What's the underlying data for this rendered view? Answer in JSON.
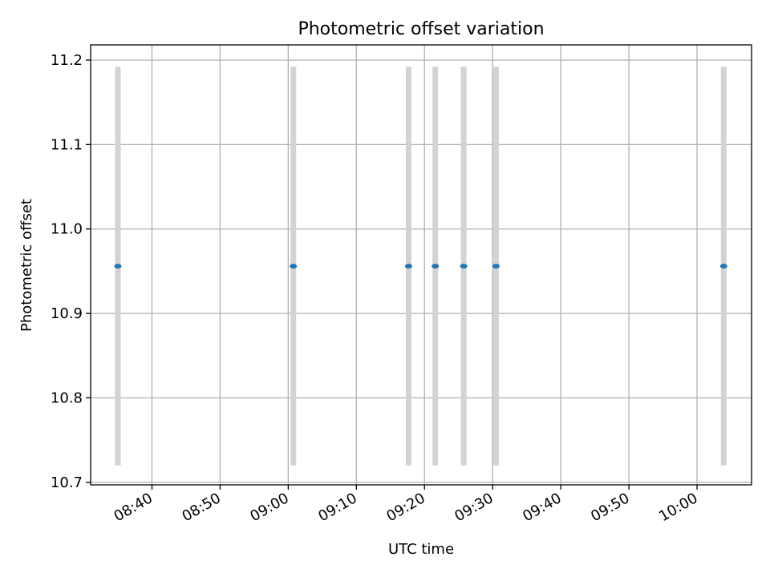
{
  "chart_data": {
    "type": "scatter",
    "title": "Photometric offset variation",
    "xlabel": "UTC time",
    "ylabel": "Photometric offset",
    "x_ticks": [
      "08:40",
      "08:50",
      "09:00",
      "09:10",
      "09:20",
      "09:30",
      "09:40",
      "09:50",
      "10:00"
    ],
    "y_ticks": [
      "10.7",
      "10.8",
      "10.9",
      "11.0",
      "11.1",
      "11.2"
    ],
    "xlim": [
      "08:31",
      "10:08"
    ],
    "ylim": [
      10.697,
      11.218
    ],
    "grid": true,
    "points": [
      {
        "time": "08:35",
        "y": 10.956,
        "err_low": 10.72,
        "err_high": 11.192
      },
      {
        "time": "09:00:45",
        "y": 10.956,
        "err_low": 10.72,
        "err_high": 11.192
      },
      {
        "time": "09:17:40",
        "y": 10.956,
        "err_low": 10.72,
        "err_high": 11.192
      },
      {
        "time": "09:21:35",
        "y": 10.956,
        "err_low": 10.72,
        "err_high": 11.192
      },
      {
        "time": "09:25:45",
        "y": 10.956,
        "err_low": 10.72,
        "err_high": 11.192
      },
      {
        "time": "09:30:30",
        "y": 10.956,
        "err_low": 10.72,
        "err_high": 11.192
      },
      {
        "time": "10:03:55",
        "y": 10.956,
        "err_low": 10.72,
        "err_high": 11.192
      }
    ],
    "colors": {
      "marker": "#1f77b4",
      "errorbar": "#d3d3d3",
      "grid": "#b0b0b0"
    }
  }
}
